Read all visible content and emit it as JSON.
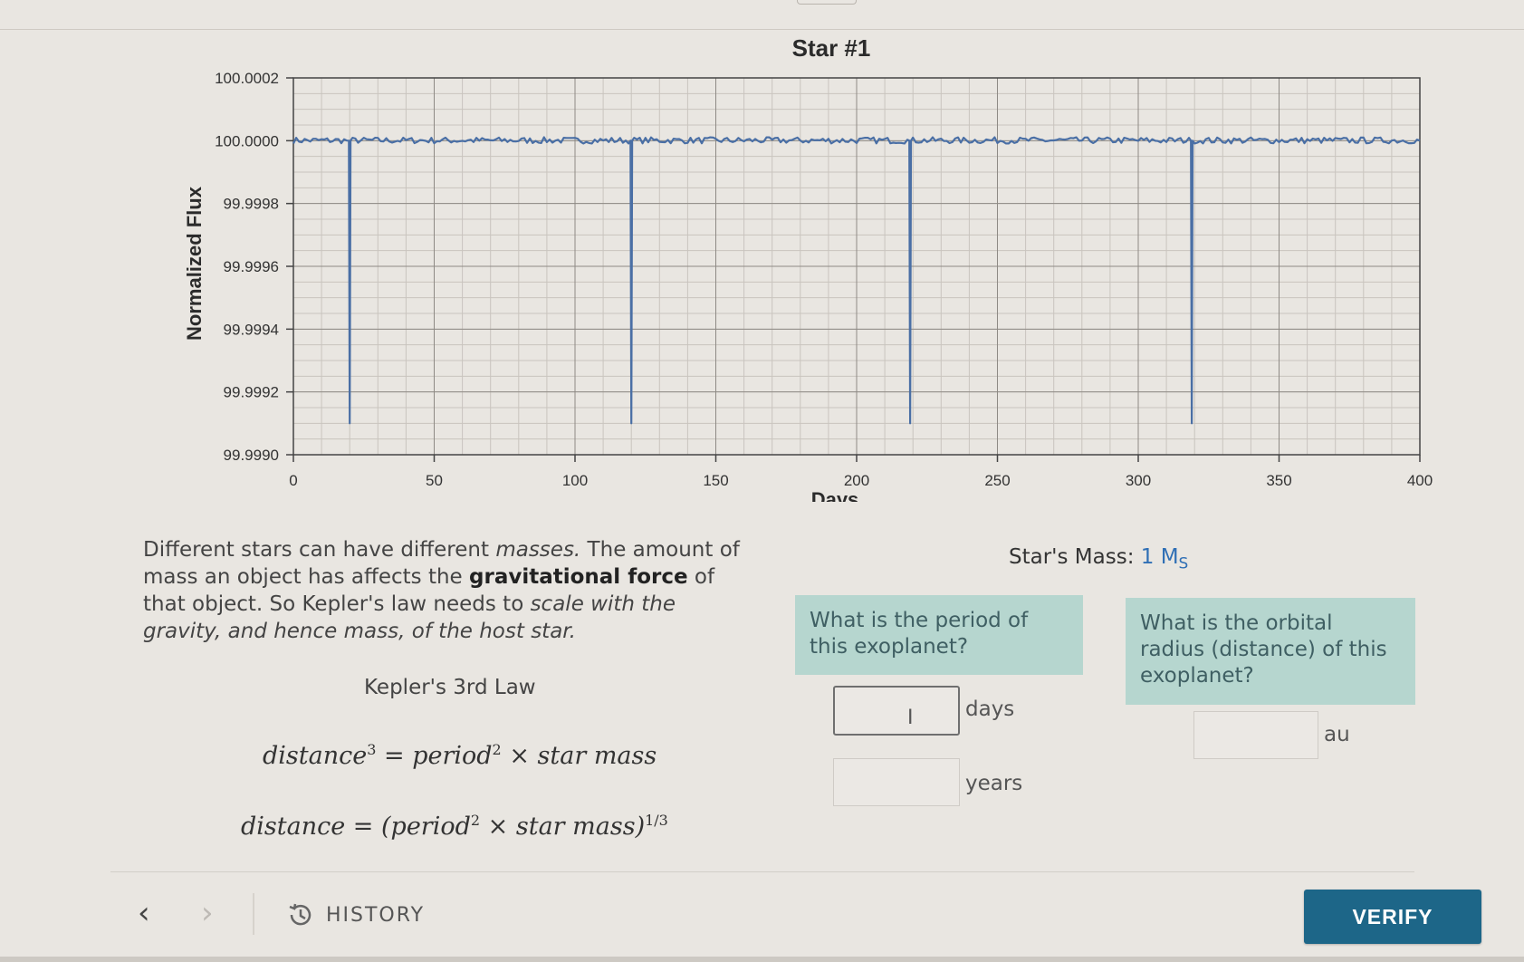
{
  "chart_data": {
    "type": "line",
    "title": "Star #1",
    "xlabel": "Days",
    "ylabel": "Normalized Flux",
    "xlim": [
      0,
      400
    ],
    "ylim": [
      99.999,
      100.0002
    ],
    "x_ticks": [
      "0",
      "50",
      "100",
      "150",
      "200",
      "250",
      "300",
      "350",
      "400"
    ],
    "y_ticks": [
      "99.9990",
      "99.9992",
      "99.9994",
      "99.9996",
      "99.9998",
      "100.0000",
      "100.0002"
    ],
    "grid": true,
    "baseline": 100.0,
    "noise_amplitude": 2e-05,
    "transit_days": [
      20,
      120,
      219,
      319
    ],
    "transit_min": 99.9991,
    "series": [
      {
        "color": "#4a6fa5"
      }
    ]
  },
  "description": {
    "p1": "Different stars can have different ",
    "p1_em": "masses.",
    "p2": " The amount of mass an object has affects the ",
    "p2_b": "gravitational force",
    "p3": " of that object. So Kepler's law needs to ",
    "p3_em": "scale with the gravity, and hence mass, of the host star."
  },
  "law": {
    "title": "Kepler's 3rd Law",
    "f1_lhs": "distance",
    "f1_lhs_exp": "3",
    "f1_rhs_a": " = period",
    "f1_rhs_exp": "2",
    "f1_rhs_b": " × star mass",
    "f2_a": "distance = (period",
    "f2_exp": "2",
    "f2_b": " × star mass)",
    "f2_power": "1/3"
  },
  "mass": {
    "label": "Star's Mass: ",
    "value": "1 M",
    "sub": "S"
  },
  "questions": {
    "q1": "What is the period of this exoplanet?",
    "q2": "What is the orbital radius (distance) of this exoplanet?"
  },
  "inputs": {
    "days_value": "",
    "days_unit": "days",
    "years_value": "",
    "years_unit": "years",
    "au_value": "",
    "au_unit": "au"
  },
  "footer": {
    "history_label": "HISTORY",
    "verify_label": "VERIFY"
  }
}
